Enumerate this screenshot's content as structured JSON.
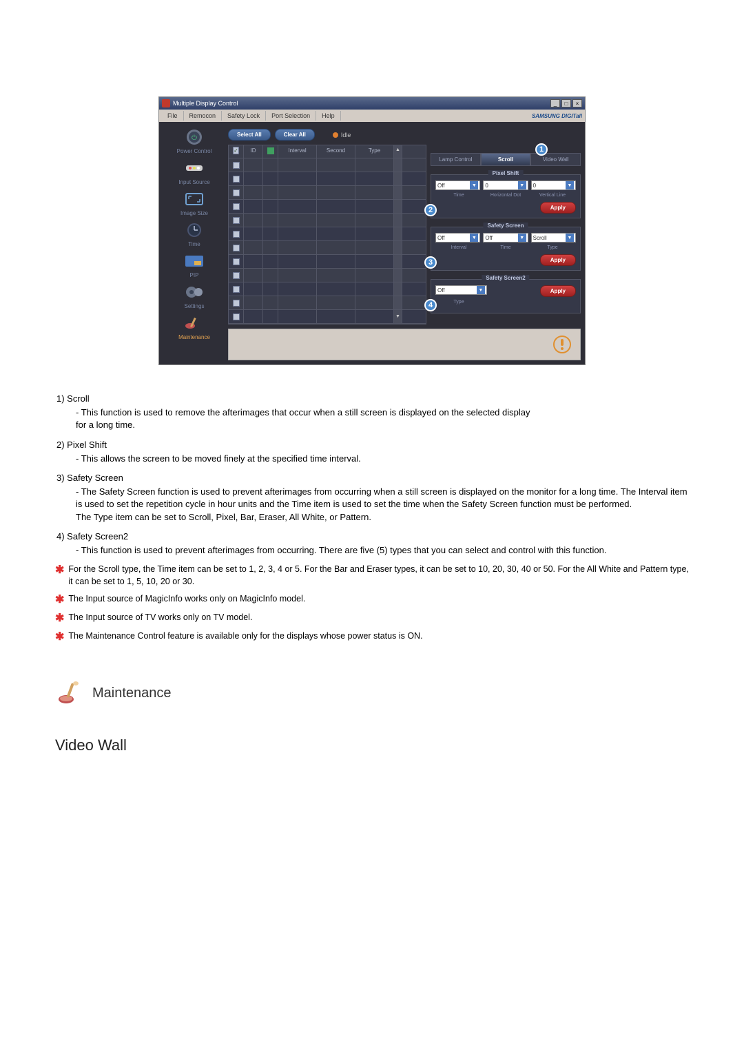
{
  "window": {
    "title": "Multiple Display Control",
    "brand": "SAMSUNG DIGITall"
  },
  "menu": [
    "File",
    "Remocon",
    "Safety Lock",
    "Port Selection",
    "Help"
  ],
  "sidebar": [
    {
      "label": "Power Control"
    },
    {
      "label": "Input Source"
    },
    {
      "label": "Image Size"
    },
    {
      "label": "Time"
    },
    {
      "label": "PIP"
    },
    {
      "label": "Settings"
    },
    {
      "label": "Maintenance",
      "active": true
    }
  ],
  "topbar": {
    "select_all": "Select All",
    "clear_all": "Clear All",
    "idle": "Idle"
  },
  "table_headers": {
    "id": "ID",
    "interval": "Interval",
    "second": "Second",
    "type": "Type"
  },
  "tabs": {
    "lamp": "Lamp Control",
    "scroll": "Scroll",
    "video": "Video Wall"
  },
  "marker_nums": {
    "one": "1",
    "two": "2",
    "three": "3",
    "four": "4"
  },
  "pixel_shift": {
    "title": "Pixel Shift",
    "v1": "Off",
    "v2": "0",
    "v3": "0",
    "labels": {
      "time": "Time",
      "hdot": "Horizontal Dot",
      "vline": "Vertical Line"
    },
    "apply": "Apply"
  },
  "safety_screen": {
    "title": "Safety Screen",
    "v1": "Off",
    "v2": "Off",
    "v3": "Scroll",
    "labels": {
      "interval": "Interval",
      "time": "Time",
      "type": "Type"
    },
    "apply": "Apply"
  },
  "safety_screen2": {
    "title": "Safety Screen2",
    "v1": "Off",
    "labels": {
      "type": "Type"
    },
    "apply": "Apply"
  },
  "doc": {
    "items": [
      {
        "num": "1)",
        "title": "Scroll",
        "body": "- This function is used to remove the afterimages that occur when a still screen is displayed on the selected display\nfor a long time."
      },
      {
        "num": "2)",
        "title": "Pixel Shift",
        "body": "- This allows the screen to be moved finely at the specified time interval."
      },
      {
        "num": "3)",
        "title": "Safety Screen",
        "body": "- The Safety Screen function is used to prevent afterimages from occurring when a still screen is displayed on the monitor for a long time.  The Interval item is used to set the repetition cycle in hour units and the Time item is used to set the time when the Safety Screen function must be performed.\nThe Type item can be set to Scroll, Pixel, Bar, Eraser, All White, or Pattern."
      },
      {
        "num": "4)",
        "title": "Safety Screen2",
        "body": "- This function is used to prevent afterimages from occurring. There are five (5) types that you can select and control with this function."
      }
    ],
    "stars": [
      "For the Scroll type, the Time item can be set to 1, 2, 3, 4 or 5. For the Bar and Eraser types, it can be set to 10, 20, 30, 40 or 50. For the All White and Pattern type, it can be set to 1, 5, 10, 20 or 30.",
      "The Input source of MagicInfo works only on MagicInfo model.",
      "The Input source of TV works only on TV model.",
      "The Maintenance Control feature is available only for the displays whose power status is ON."
    ],
    "section_header": "Maintenance",
    "sub_section": "Video Wall"
  },
  "colors": {
    "panel_bg": "#353848",
    "accent_blue": "#4a8acc",
    "apply_red": "#d04040"
  }
}
